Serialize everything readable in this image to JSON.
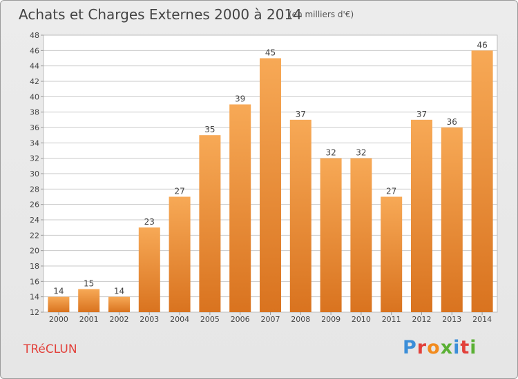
{
  "header": {
    "title": "Achats et Charges Externes 2000 à 2014",
    "unit_note": "(en milliers d'€)"
  },
  "footer": {
    "commune": "TRéCLUN",
    "logo_text": "Proxiti",
    "logo_colors": [
      "#3b8ed8",
      "#e2403a",
      "#f28b1e",
      "#5ab034",
      "#3b8ed8",
      "#e2403a",
      "#5ab034"
    ]
  },
  "colors": {
    "bar_light": "#f7a956",
    "bar_dark": "#d9731f",
    "commune_text": "#e2403a",
    "grid": "#c8c8c8",
    "plot_bg": "#ffffff"
  },
  "chart_data": {
    "type": "bar",
    "title": "Achats et Charges Externes 2000 à 2014",
    "subtitle": "(en milliers d'€)",
    "xlabel": "",
    "ylabel": "",
    "categories": [
      "2000",
      "2001",
      "2002",
      "2003",
      "2004",
      "2005",
      "2006",
      "2007",
      "2008",
      "2009",
      "2010",
      "2011",
      "2012",
      "2013",
      "2014"
    ],
    "values": [
      14,
      15,
      14,
      23,
      27,
      35,
      39,
      45,
      37,
      32,
      32,
      27,
      37,
      36,
      46
    ],
    "ylim": [
      12,
      48
    ],
    "yticks": [
      12,
      14,
      16,
      18,
      20,
      22,
      24,
      26,
      28,
      30,
      32,
      34,
      36,
      38,
      40,
      42,
      44,
      46,
      48
    ],
    "grid": true,
    "data_labels": true
  }
}
